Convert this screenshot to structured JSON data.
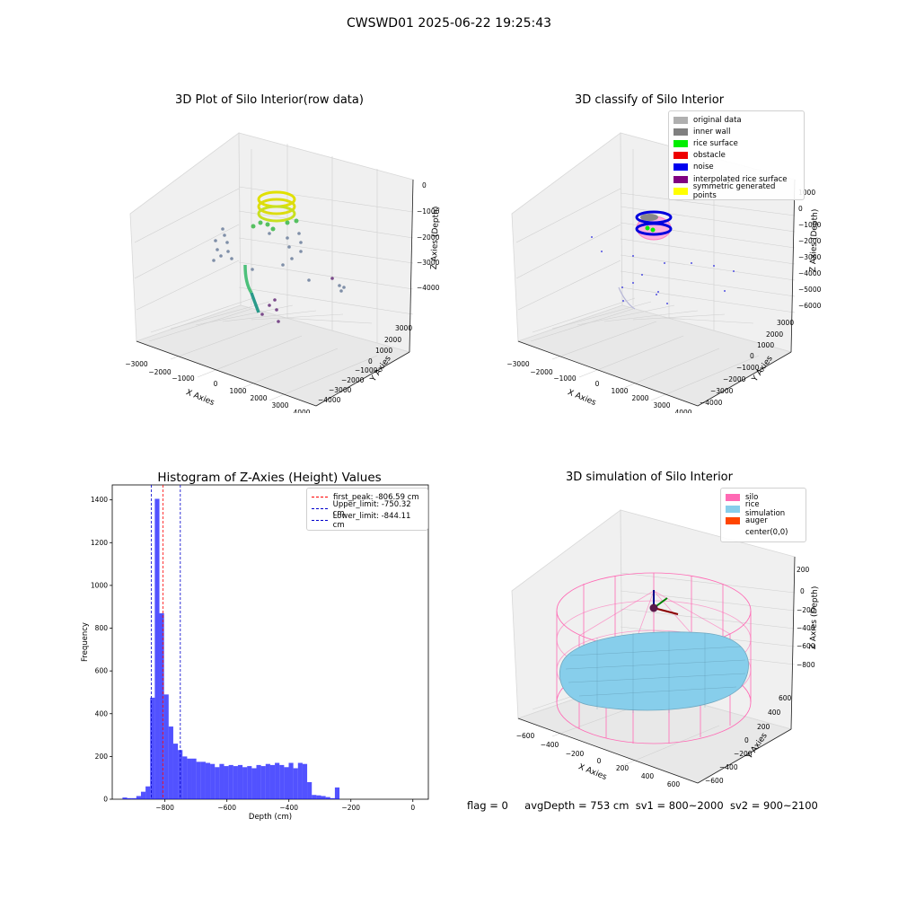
{
  "figure": {
    "suptitle": "CWSWD01 2025-06-22 19:25:43"
  },
  "panel_raw": {
    "title": "3D Plot of Silo Interior(row data)",
    "xlabel": "X Axies",
    "ylabel": "Y Axies",
    "zlabel": "Z Axies (Depth)",
    "xticks": [
      "−3000",
      "−2000",
      "−1000",
      "0",
      "1000",
      "2000",
      "3000",
      "4000"
    ],
    "yticks": [
      "3000",
      "2000",
      "1000",
      "0",
      "−1000",
      "−2000",
      "−3000",
      "−4000"
    ],
    "zticks": [
      "0",
      "−1000",
      "−2000",
      "−3000",
      "−4000"
    ]
  },
  "panel_classify": {
    "title": "3D classify of Silo Interior",
    "xlabel": "X Axies",
    "ylabel": "Y Axies",
    "zlabel": "Z Axies (Depth)",
    "xticks": [
      "−3000",
      "−2000",
      "−1000",
      "0",
      "1000",
      "2000",
      "3000",
      "4000"
    ],
    "yticks": [
      "3000",
      "2000",
      "1000",
      "0",
      "−1000",
      "−2000",
      "−3000",
      "−4000"
    ],
    "zticks": [
      "1000",
      "0",
      "−1000",
      "−2000",
      "−3000",
      "−4000",
      "−5000",
      "−6000"
    ],
    "legend": [
      {
        "label": "original data",
        "color": "#b0b0b0"
      },
      {
        "label": "inner wall",
        "color": "#808080"
      },
      {
        "label": "rice surface",
        "color": "#00ee00"
      },
      {
        "label": "obstacle",
        "color": "#ee0000"
      },
      {
        "label": "noise",
        "color": "#0000ee"
      },
      {
        "label": "interpolated rice surface",
        "color": "#800080"
      },
      {
        "label": "symmetric generated points",
        "color": "#ffff00"
      }
    ]
  },
  "panel_sim": {
    "title": "3D simulation of Silo Interior",
    "xlabel": "X Axies",
    "ylabel": "Y Axies",
    "zlabel": "Z Axies (Depth)",
    "xticks": [
      "−600",
      "−400",
      "−200",
      "0",
      "200",
      "400",
      "600"
    ],
    "yticks": [
      "600",
      "400",
      "200",
      "0",
      "−200",
      "−400",
      "−600"
    ],
    "zticks": [
      "200",
      "0",
      "−200",
      "−400",
      "−600",
      "−800"
    ],
    "legend": [
      {
        "label": "silo",
        "color": "#ff69b4"
      },
      {
        "label": "rice simulation",
        "color": "#87ceeb"
      },
      {
        "label": "auger",
        "color": "#ff4500"
      },
      {
        "label": "center(0,0)",
        "color": "#ffffff"
      }
    ]
  },
  "chart_data": {
    "type": "bar",
    "title": "Histogram of Z-Axies (Height) Values",
    "xlabel": "Depth (cm)",
    "ylabel": "Frequency",
    "xlim": [
      -970,
      50
    ],
    "ylim": [
      0,
      1470
    ],
    "xticks": [
      -800,
      -600,
      -400,
      -200,
      0
    ],
    "xtick_labels": [
      "−800",
      "−600",
      "−400",
      "−200",
      "0"
    ],
    "yticks": [
      0,
      200,
      400,
      600,
      800,
      1000,
      1200,
      1400
    ],
    "bin_width": 14.9,
    "bin_start": -937,
    "values": [
      8,
      5,
      5,
      15,
      35,
      60,
      475,
      1405,
      870,
      490,
      340,
      260,
      230,
      200,
      190,
      190,
      175,
      175,
      170,
      165,
      150,
      165,
      155,
      160,
      155,
      160,
      150,
      155,
      145,
      160,
      155,
      165,
      160,
      170,
      160,
      150,
      170,
      145,
      170,
      165,
      80,
      20,
      18,
      15,
      10,
      5,
      55
    ],
    "series_color": "#0000ff",
    "vlines": [
      {
        "value": -806.59,
        "label": "first_peak: -806.59 cm",
        "color": "#ff0000"
      },
      {
        "value": -750.32,
        "label": "Upper_limit: -750.32 cm",
        "color": "#0000cc"
      },
      {
        "value": -844.11,
        "label": "Lower_limit: -844.11 cm",
        "color": "#0000cc"
      }
    ]
  },
  "footer": {
    "flag": "flag = 0",
    "avg": "avgDepth = 753 cm",
    "sv1": "sv1 = 800~2000",
    "sv2": "sv2 = 900~2100"
  }
}
